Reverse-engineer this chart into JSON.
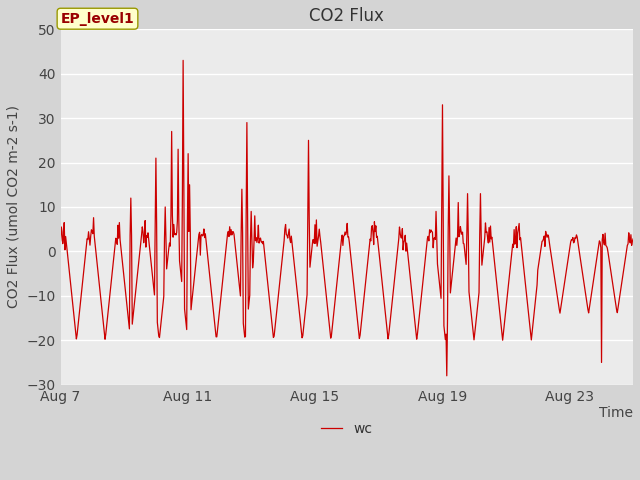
{
  "title": "CO2 Flux",
  "xlabel": "Time",
  "ylabel": "CO2 Flux (umol CO2 m-2 s-1)",
  "legend_label": "wc",
  "annotation_text": "EP_level1",
  "ylim": [
    -30,
    50
  ],
  "yticks": [
    -30,
    -20,
    -10,
    0,
    10,
    20,
    30,
    40,
    50
  ],
  "xtick_positions": [
    7,
    11,
    15,
    19,
    23
  ],
  "xtick_labels": [
    "Aug 7",
    "Aug 11",
    "Aug 15",
    "Aug 19",
    "Aug 23"
  ],
  "xlim": [
    7,
    25
  ],
  "line_color": "#cc0000",
  "fig_bg_color": "#d4d4d4",
  "plot_bg_color": "#ebebeb",
  "grid_color": "#ffffff",
  "title_fontsize": 12,
  "axis_fontsize": 10,
  "tick_fontsize": 10,
  "legend_fontsize": 10,
  "annotation_fontsize": 10
}
